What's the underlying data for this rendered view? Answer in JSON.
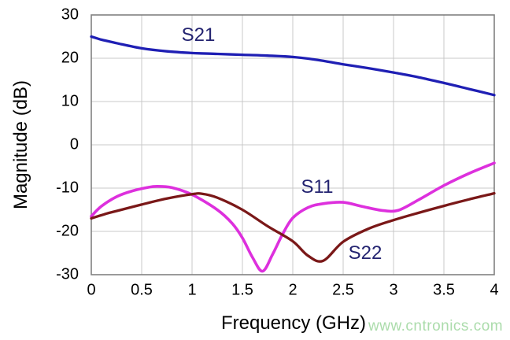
{
  "chart_data": {
    "type": "line",
    "title": "",
    "xlabel": "Frequency (GHz)",
    "ylabel": "Magnitude (dB)",
    "xlim": [
      0,
      4
    ],
    "ylim": [
      -30,
      30
    ],
    "x_ticks": [
      0,
      0.5,
      1,
      1.5,
      2,
      2.5,
      3,
      3.5,
      4
    ],
    "x_tick_labels": [
      "0",
      "0.5",
      "1",
      "1.5",
      "2",
      "2.5",
      "3",
      "3.5",
      "4"
    ],
    "y_ticks": [
      30,
      20,
      10,
      0,
      -10,
      -20,
      -30
    ],
    "y_tick_labels": [
      "30",
      "20",
      "10",
      "0",
      "-10",
      "-20",
      "-30"
    ],
    "grid": true,
    "grid_color": "#c8c8c8",
    "border_color": "#808080",
    "annotation_color": "#232370",
    "legend": "inline-labels",
    "series": [
      {
        "name": "S21",
        "color": "#1f1fb4",
        "stroke_width": 3.3,
        "points": [
          [
            0,
            25.0
          ],
          [
            0.1,
            24.3
          ],
          [
            0.25,
            23.5
          ],
          [
            0.5,
            22.3
          ],
          [
            0.75,
            21.6
          ],
          [
            1.0,
            21.2
          ],
          [
            1.25,
            21.0
          ],
          [
            1.5,
            20.8
          ],
          [
            1.75,
            20.6
          ],
          [
            2.0,
            20.3
          ],
          [
            2.25,
            19.6
          ],
          [
            2.5,
            18.6
          ],
          [
            2.75,
            17.7
          ],
          [
            3.0,
            16.7
          ],
          [
            3.25,
            15.6
          ],
          [
            3.5,
            14.3
          ],
          [
            3.75,
            12.9
          ],
          [
            4.0,
            11.5
          ]
        ]
      },
      {
        "name": "S11",
        "color": "#dd30dd",
        "stroke_width": 3.6,
        "points": [
          [
            0,
            -16.5
          ],
          [
            0.1,
            -14.2
          ],
          [
            0.25,
            -12.0
          ],
          [
            0.4,
            -10.7
          ],
          [
            0.55,
            -9.9
          ],
          [
            0.65,
            -9.6
          ],
          [
            0.8,
            -9.9
          ],
          [
            1.0,
            -11.5
          ],
          [
            1.25,
            -15.0
          ],
          [
            1.4,
            -18.2
          ],
          [
            1.5,
            -21.5
          ],
          [
            1.6,
            -26.0
          ],
          [
            1.7,
            -29.2
          ],
          [
            1.8,
            -25.3
          ],
          [
            1.9,
            -20.6
          ],
          [
            2.0,
            -16.9
          ],
          [
            2.15,
            -14.5
          ],
          [
            2.3,
            -13.6
          ],
          [
            2.5,
            -13.3
          ],
          [
            2.7,
            -14.3
          ],
          [
            2.9,
            -15.2
          ],
          [
            3.05,
            -15.1
          ],
          [
            3.25,
            -12.7
          ],
          [
            3.5,
            -9.4
          ],
          [
            3.75,
            -6.6
          ],
          [
            4.0,
            -4.2
          ]
        ]
      },
      {
        "name": "S22",
        "color": "#7a1818",
        "stroke_width": 3.3,
        "points": [
          [
            0,
            -17.0
          ],
          [
            0.15,
            -15.9
          ],
          [
            0.25,
            -15.3
          ],
          [
            0.5,
            -13.8
          ],
          [
            0.75,
            -12.4
          ],
          [
            1.0,
            -11.4
          ],
          [
            1.1,
            -11.3
          ],
          [
            1.25,
            -12.2
          ],
          [
            1.5,
            -15.0
          ],
          [
            1.75,
            -18.8
          ],
          [
            2.0,
            -22.3
          ],
          [
            2.15,
            -25.6
          ],
          [
            2.3,
            -26.8
          ],
          [
            2.5,
            -22.4
          ],
          [
            2.75,
            -19.4
          ],
          [
            3.0,
            -17.4
          ],
          [
            3.25,
            -15.7
          ],
          [
            3.5,
            -14.1
          ],
          [
            3.75,
            -12.6
          ],
          [
            4.0,
            -11.2
          ]
        ]
      }
    ]
  },
  "watermark": {
    "text": "www.cntronics.com",
    "color": "#abdcab"
  }
}
